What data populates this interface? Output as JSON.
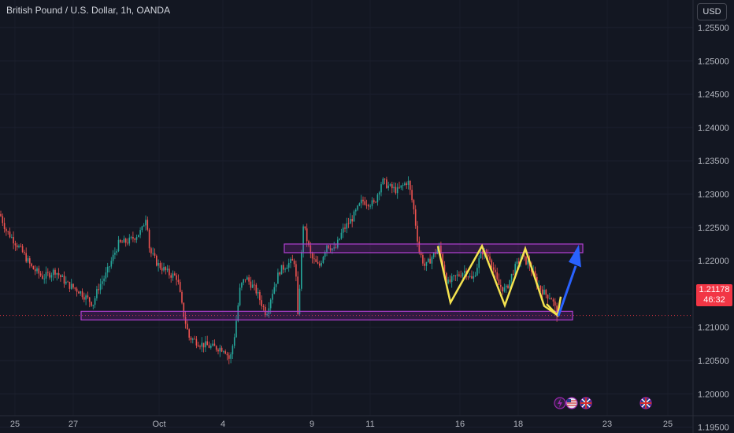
{
  "header": {
    "symbol_title": "British Pound / U.S. Dollar, 1h, OANDA",
    "currency_button": "USD"
  },
  "price_axis": {
    "labels": [
      "1.25500",
      "1.25000",
      "1.24500",
      "1.24000",
      "1.23500",
      "1.23000",
      "1.22500",
      "1.22000",
      "1.21500",
      "1.21000",
      "1.20500",
      "1.20000",
      "1.19500"
    ]
  },
  "time_axis": {
    "labels": [
      "25",
      "27",
      "Oct",
      "4",
      "9",
      "11",
      "16",
      "18",
      "23",
      "25"
    ]
  },
  "last_price": {
    "value": "1.21178",
    "countdown": "46:32"
  },
  "colors": {
    "background": "#131722",
    "up": "#26a69a",
    "down": "#ef5350",
    "zone": "#9c27b0",
    "pattern": "#f5e34f",
    "arrow": "#2962ff",
    "price_tag": "#f23645"
  },
  "events": {
    "icons": [
      "lightning-icon",
      "us-flag-icon",
      "uk-flag-icon",
      "uk-flag-icon"
    ]
  },
  "chart_data": {
    "type": "candlestick",
    "title": "British Pound / U.S. Dollar, 1h, OANDA",
    "ylim": [
      1.192,
      1.258
    ],
    "approx_path": [
      [
        0,
        1.227
      ],
      [
        8,
        1.2245
      ],
      [
        18,
        1.223
      ],
      [
        30,
        1.221
      ],
      [
        40,
        1.219
      ],
      [
        55,
        1.2175
      ],
      [
        70,
        1.2185
      ],
      [
        85,
        1.2165
      ],
      [
        100,
        1.2155
      ],
      [
        118,
        1.2135
      ],
      [
        125,
        1.216
      ],
      [
        135,
        1.218
      ],
      [
        150,
        1.2225
      ],
      [
        165,
        1.223
      ],
      [
        180,
        1.2245
      ],
      [
        186,
        1.227
      ],
      [
        190,
        1.2215
      ],
      [
        200,
        1.2195
      ],
      [
        215,
        1.218
      ],
      [
        225,
        1.2175
      ],
      [
        232,
        1.2125
      ],
      [
        240,
        1.2085
      ],
      [
        255,
        1.2075
      ],
      [
        270,
        1.207
      ],
      [
        285,
        1.2068
      ],
      [
        292,
        1.205
      ],
      [
        298,
        1.209
      ],
      [
        305,
        1.216
      ],
      [
        312,
        1.2175
      ],
      [
        325,
        1.2155
      ],
      [
        338,
        1.212
      ],
      [
        345,
        1.215
      ],
      [
        355,
        1.2185
      ],
      [
        365,
        1.2195
      ],
      [
        375,
        1.22
      ],
      [
        378,
        1.211
      ],
      [
        385,
        1.2255
      ],
      [
        395,
        1.2205
      ],
      [
        405,
        1.219
      ],
      [
        415,
        1.2225
      ],
      [
        425,
        1.2215
      ],
      [
        435,
        1.2245
      ],
      [
        448,
        1.2265
      ],
      [
        460,
        1.229
      ],
      [
        475,
        1.2285
      ],
      [
        485,
        1.232
      ],
      [
        495,
        1.231
      ],
      [
        505,
        1.2305
      ],
      [
        518,
        1.232
      ],
      [
        525,
        1.228
      ],
      [
        532,
        1.2215
      ],
      [
        540,
        1.219
      ],
      [
        548,
        1.2205
      ],
      [
        558,
        1.222
      ],
      [
        568,
        1.2165
      ],
      [
        578,
        1.2175
      ],
      [
        590,
        1.2185
      ],
      [
        600,
        1.217
      ],
      [
        612,
        1.2215
      ],
      [
        622,
        1.2205
      ],
      [
        632,
        1.2165
      ],
      [
        642,
        1.2155
      ],
      [
        652,
        1.2185
      ],
      [
        662,
        1.2205
      ],
      [
        672,
        1.2195
      ],
      [
        682,
        1.2165
      ],
      [
        692,
        1.215
      ],
      [
        700,
        1.2145
      ],
      [
        708,
        1.2118
      ]
    ],
    "zones": [
      {
        "label": "resistance",
        "y_top": 1.2225,
        "y_bottom": 1.2212
      },
      {
        "label": "support",
        "y_top": 1.2124,
        "y_bottom": 1.2111
      }
    ],
    "zigzag": [
      [
        556,
        1.2222
      ],
      [
        572,
        1.2137
      ],
      [
        612,
        1.2222
      ],
      [
        641,
        1.2133
      ],
      [
        667,
        1.2218
      ],
      [
        691,
        1.2132
      ],
      [
        708,
        1.2118
      ]
    ],
    "last_value": 1.21178
  }
}
